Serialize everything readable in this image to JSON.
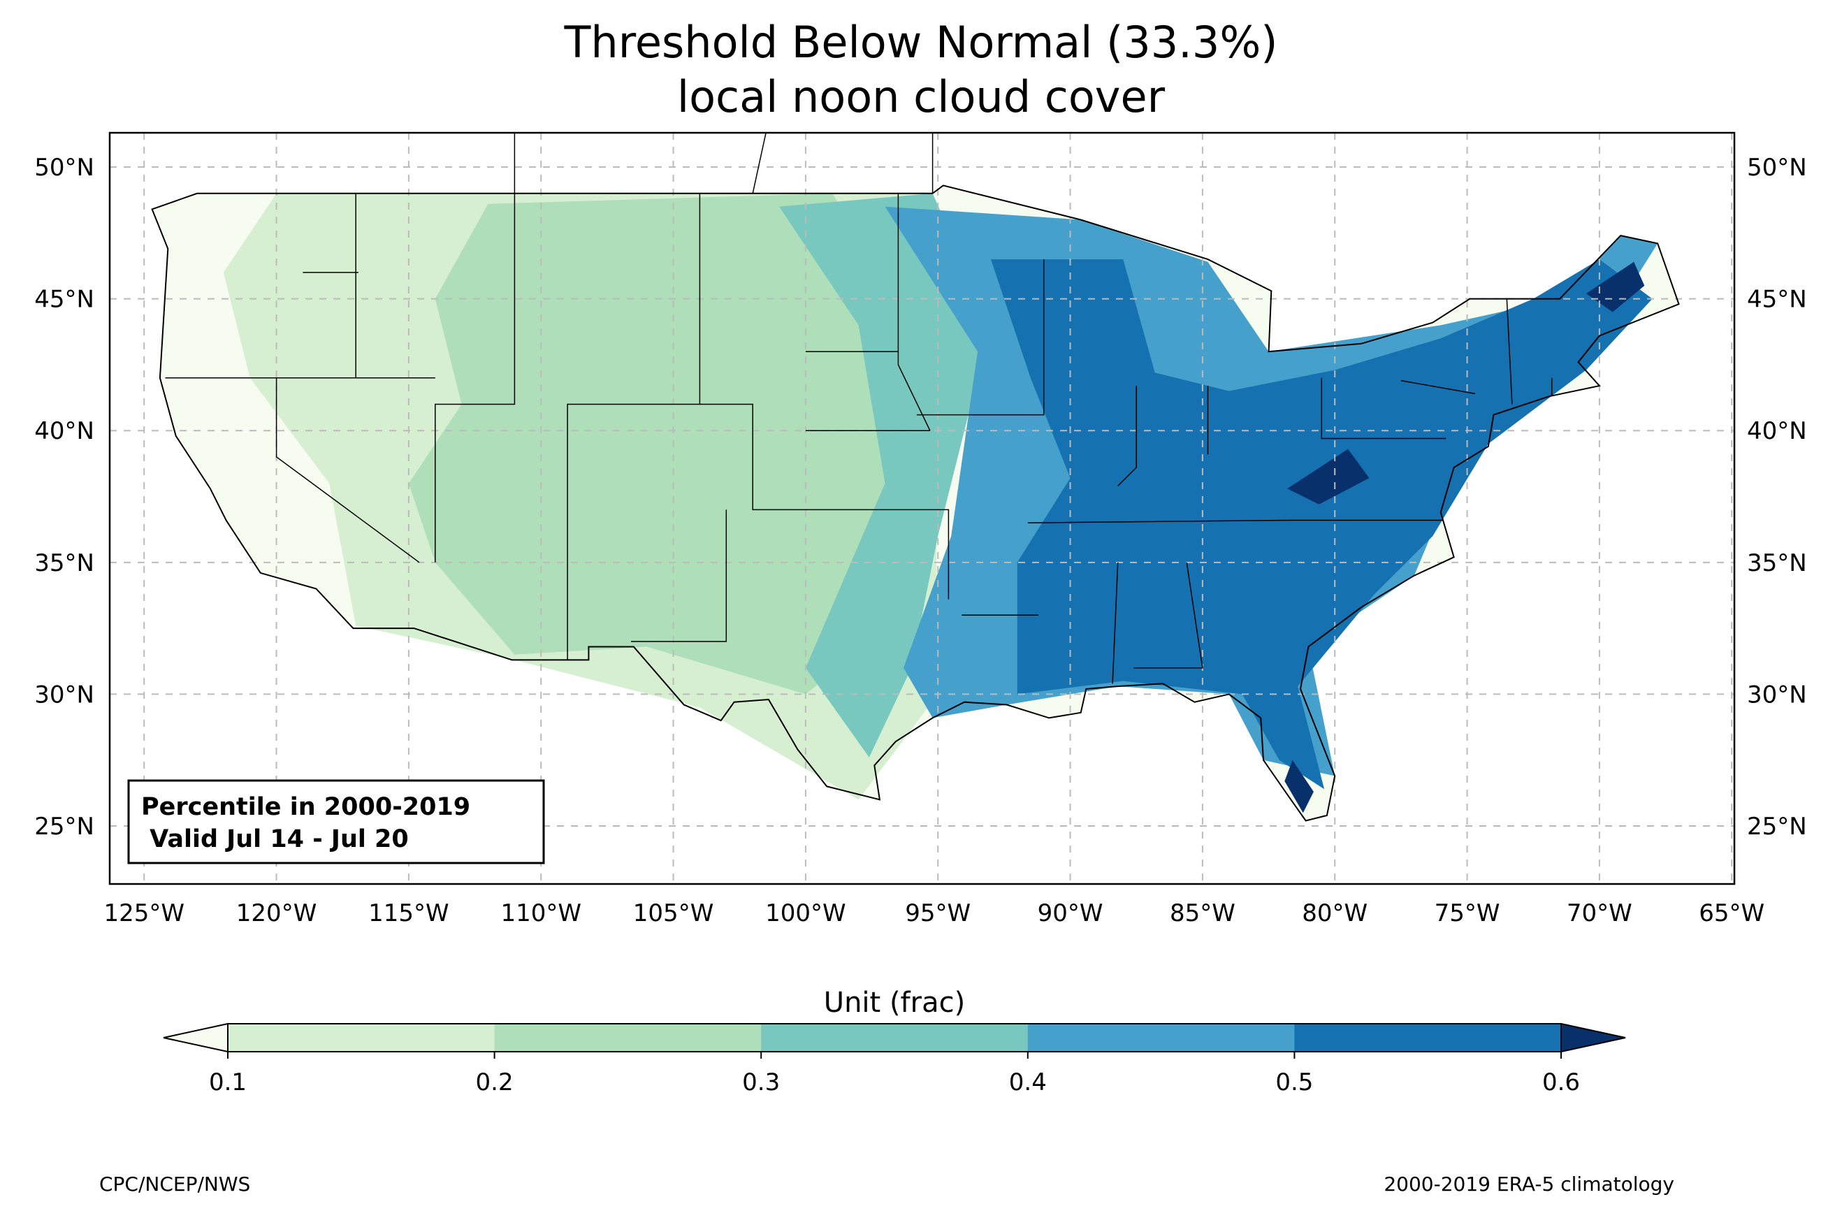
{
  "title": {
    "line1": "Threshold Below Normal (33.3%)",
    "line2": "local noon cloud cover"
  },
  "map": {
    "projection": "PlateCarree",
    "lon_range": [
      -126.3,
      -64.9
    ],
    "lat_range": [
      22.8,
      51.3
    ],
    "gridlines": true,
    "lon_ticks": [
      "125°W",
      "120°W",
      "115°W",
      "110°W",
      "105°W",
      "100°W",
      "95°W",
      "90°W",
      "85°W",
      "80°W",
      "75°W",
      "70°W",
      "65°W"
    ],
    "lon_values": [
      -125,
      -120,
      -115,
      -110,
      -105,
      -100,
      -95,
      -90,
      -85,
      -80,
      -75,
      -70,
      -65
    ],
    "lat_ticks": [
      "25°N",
      "30°N",
      "35°N",
      "40°N",
      "45°N",
      "50°N"
    ],
    "lat_values": [
      25,
      30,
      35,
      40,
      45,
      50
    ]
  },
  "infobox": {
    "line1": "Percentile in 2000-2019",
    "line2": " Valid Jul 14 - Jul 20"
  },
  "colorbar": {
    "label": "Unit (frac)",
    "ticks": [
      "0.1",
      "0.2",
      "0.3",
      "0.4",
      "0.5",
      "0.6"
    ],
    "levels": [
      0.1,
      0.2,
      0.3,
      0.4,
      0.5,
      0.6
    ],
    "colors": {
      "under": "#f7fcf0",
      "b1": "#d7efd1",
      "b2": "#aedfb9",
      "b3": "#79c8c0",
      "b4": "#45a0cc",
      "b5": "#1571b0",
      "over": "#08306b"
    },
    "extend": "both"
  },
  "credits": {
    "left": "CPC/NCEP/NWS",
    "right": "2000-2019 ERA-5 climatology"
  }
}
